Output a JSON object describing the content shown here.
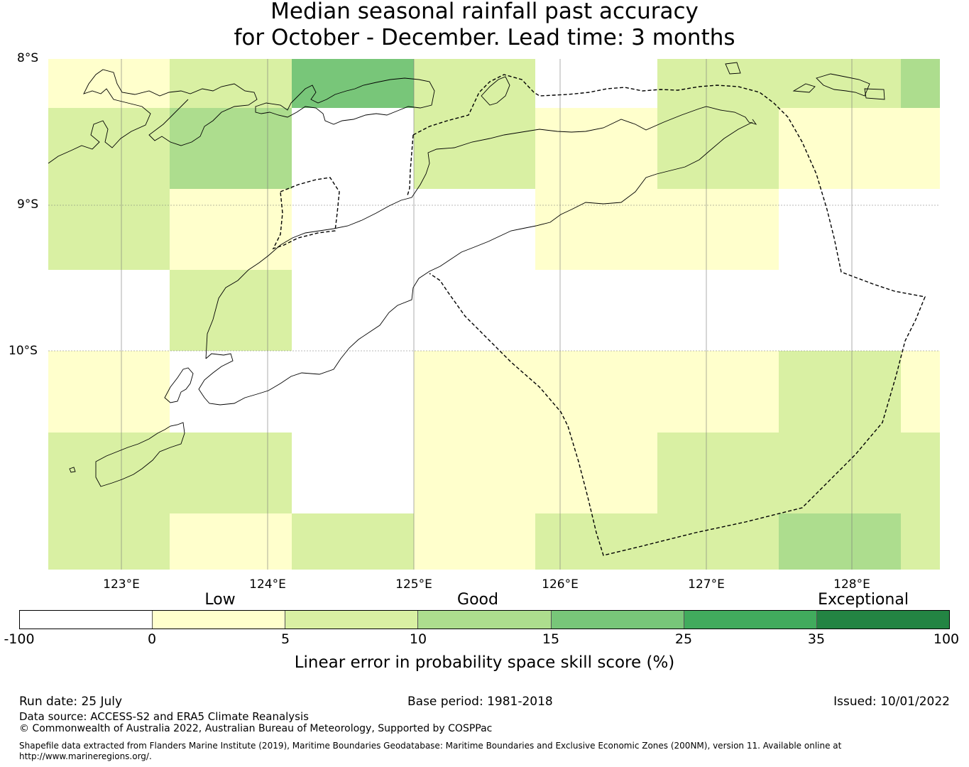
{
  "title": {
    "line1": "Median seasonal rainfall past accuracy",
    "line2": "for October - December. Lead time: 3 months"
  },
  "map": {
    "lat_labels": [
      "8°S",
      "9°S",
      "10°S"
    ],
    "lon_labels": [
      "123°E",
      "124°E",
      "125°E",
      "126°E",
      "127°E",
      "128°E"
    ],
    "extent": {
      "lon_min": 122.5,
      "lon_max": 128.6,
      "lat_north": -8.0,
      "lat_south": -11.5
    },
    "grid_cell_size_deg": 0.833,
    "grid_skill_class": [
      [
        1,
        2,
        4,
        2,
        0,
        2,
        2,
        3
      ],
      [
        2,
        3,
        0,
        2,
        1,
        2,
        1,
        1
      ],
      [
        2,
        1,
        0,
        0,
        1,
        1,
        0,
        0
      ],
      [
        0,
        2,
        0,
        0,
        0,
        0,
        0,
        0
      ],
      [
        1,
        0,
        0,
        1,
        1,
        1,
        2,
        1
      ],
      [
        2,
        2,
        0,
        1,
        1,
        2,
        2,
        2
      ],
      [
        2,
        1,
        2,
        1,
        2,
        2,
        3,
        2
      ]
    ],
    "class_colors": [
      "#ffffff",
      "#ffffcc",
      "#d9f0a3",
      "#addd8e",
      "#78c679",
      "#41ab5d",
      "#238443"
    ]
  },
  "colorbar": {
    "category_labels": {
      "low": "Low",
      "good": "Good",
      "exceptional": "Exceptional"
    },
    "ticks": [
      "-100",
      "0",
      "5",
      "10",
      "15",
      "25",
      "35",
      "100"
    ],
    "colors": [
      "#ffffff",
      "#ffffcc",
      "#d9f0a3",
      "#addd8e",
      "#78c679",
      "#41ab5d",
      "#238443"
    ],
    "label": "Linear error in probability space skill score (%)"
  },
  "footer": {
    "run_date": "Run date: 25 July",
    "base_period": "Base period: 1981-2018",
    "issued": "Issued: 10/01/2022",
    "data_source": "Data source: ACCESS-S2 and ERA5 Climate Reanalysis",
    "copyright": "© Commonwealth of Australia 2022, Australian Bureau of Meteorology, Supported by COSPPac",
    "shapefile": "Shapefile data extracted from Flanders Marine Institute (2019), Maritime Boundaries Geodatabase: Maritime Boundaries and Exclusive Economic Zones (200NM), version 11. Available online at http://www.marineregions.org/."
  }
}
